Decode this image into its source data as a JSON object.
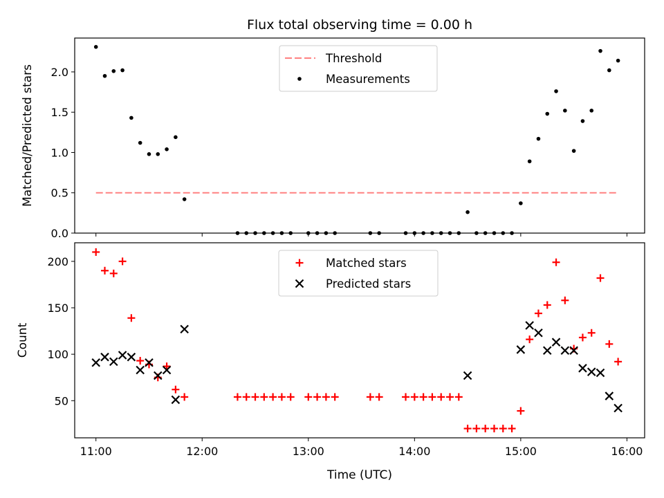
{
  "chart_data": [
    {
      "type": "scatter",
      "title": "Flux total observing time = 0.00 h",
      "xlabel": "",
      "ylabel": "Matched/Predicted stars",
      "ylim": [
        0,
        2.42
      ],
      "yticks": [
        "0.0",
        "0.5",
        "1.0",
        "1.5",
        "2.0"
      ],
      "ytick_values": [
        0,
        0.5,
        1.0,
        1.5,
        2.0
      ],
      "legend_position": "top-center",
      "threshold": {
        "name": "Threshold",
        "color": "#ff8080",
        "x_start": "11:00",
        "x_end": "15:55",
        "value": 0.5
      },
      "series": [
        {
          "name": "Measurements",
          "color": "#000000",
          "marker": "dot",
          "x": [
            "11:00",
            "11:05",
            "11:10",
            "11:15",
            "11:20",
            "11:25",
            "11:30",
            "11:35",
            "11:40",
            "11:45",
            "11:50",
            "12:20",
            "12:25",
            "12:30",
            "12:35",
            "12:40",
            "12:45",
            "12:50",
            "13:00",
            "13:05",
            "13:10",
            "13:15",
            "13:35",
            "13:40",
            "13:55",
            "14:00",
            "14:05",
            "14:10",
            "14:15",
            "14:20",
            "14:25",
            "14:30",
            "14:35",
            "14:40",
            "14:45",
            "14:50",
            "14:55",
            "15:00",
            "15:05",
            "15:10",
            "15:15",
            "15:20",
            "15:25",
            "15:30",
            "15:35",
            "15:40",
            "15:45",
            "15:50",
            "15:55"
          ],
          "y": [
            2.31,
            1.95,
            2.01,
            2.02,
            1.43,
            1.12,
            0.98,
            0.98,
            1.04,
            1.19,
            0.42,
            0,
            0,
            0,
            0,
            0,
            0,
            0,
            0,
            0,
            0,
            0,
            0,
            0,
            0,
            0,
            0,
            0,
            0,
            0,
            0,
            0.26,
            0,
            0,
            0,
            0,
            0,
            0.37,
            0.89,
            1.17,
            1.48,
            1.76,
            1.52,
            1.02,
            1.39,
            1.52,
            2.26,
            2.02,
            2.14
          ]
        }
      ]
    },
    {
      "type": "scatter",
      "title": "",
      "xlabel": "Time (UTC)",
      "ylabel": "Count",
      "ylim": [
        10,
        220
      ],
      "yticks": [
        "50",
        "100",
        "150",
        "200"
      ],
      "ytick_values": [
        50,
        100,
        150,
        200
      ],
      "xlim": [
        "10:48",
        "16:10"
      ],
      "xticks": [
        "11:00",
        "12:00",
        "13:00",
        "14:00",
        "15:00",
        "16:00"
      ],
      "legend_position": "top-center",
      "series": [
        {
          "name": "Matched stars",
          "color": "#ff0000",
          "marker": "plus",
          "x": [
            "11:00",
            "11:05",
            "11:10",
            "11:15",
            "11:20",
            "11:25",
            "11:30",
            "11:35",
            "11:40",
            "11:45",
            "11:50",
            "12:20",
            "12:25",
            "12:30",
            "12:35",
            "12:40",
            "12:45",
            "12:50",
            "13:00",
            "13:05",
            "13:10",
            "13:15",
            "13:35",
            "13:40",
            "13:55",
            "14:00",
            "14:05",
            "14:10",
            "14:15",
            "14:20",
            "14:25",
            "14:30",
            "14:35",
            "14:40",
            "14:45",
            "14:50",
            "14:55",
            "15:00",
            "15:05",
            "15:10",
            "15:15",
            "15:20",
            "15:25",
            "15:30",
            "15:35",
            "15:40",
            "15:45",
            "15:50",
            "15:55"
          ],
          "y": [
            210,
            190,
            187,
            200,
            139,
            93,
            89,
            75,
            87,
            62,
            54,
            54,
            54,
            54,
            54,
            54,
            54,
            54,
            54,
            54,
            54,
            54,
            54,
            54,
            54,
            54,
            54,
            54,
            54,
            54,
            54,
            20,
            20,
            20,
            20,
            20,
            20,
            39,
            116,
            144,
            153,
            199,
            158,
            106,
            118,
            123,
            182,
            111,
            92
          ]
        },
        {
          "name": "Predicted stars",
          "color": "#000000",
          "marker": "x",
          "x": [
            "11:00",
            "11:05",
            "11:10",
            "11:15",
            "11:20",
            "11:25",
            "11:30",
            "11:35",
            "11:40",
            "11:45",
            "11:50",
            "14:30",
            "15:00",
            "15:05",
            "15:10",
            "15:15",
            "15:20",
            "15:25",
            "15:30",
            "15:35",
            "15:40",
            "15:45",
            "15:50",
            "15:55"
          ],
          "y": [
            91,
            97,
            92,
            99,
            97,
            83,
            91,
            77,
            83,
            51,
            127,
            77,
            105,
            131,
            123,
            104,
            113,
            104,
            104,
            85,
            81,
            80,
            55,
            42
          ]
        }
      ]
    }
  ],
  "colors": {
    "matched": "#ff0000",
    "predicted": "#000000",
    "threshold": "#ff8080",
    "measurements": "#000000"
  }
}
